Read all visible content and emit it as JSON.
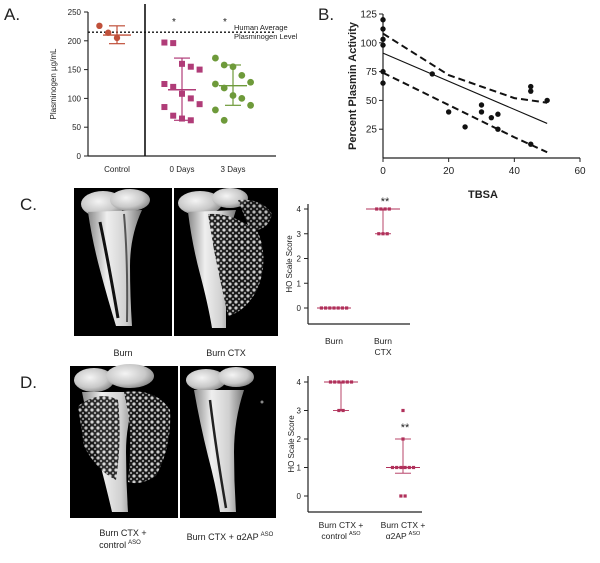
{
  "panels": {
    "a": {
      "letter": "A."
    },
    "b": {
      "letter": "B."
    },
    "c": {
      "letter": "C."
    },
    "d": {
      "letter": "D."
    }
  },
  "chart_data": [
    {
      "id": "A",
      "type": "scatter",
      "ylabel": "Plasminogen µg/mL",
      "ylim": [
        0,
        250
      ],
      "yticks": [
        "0",
        "50",
        "100",
        "150",
        "200",
        "250"
      ],
      "categories": [
        "Control",
        "0 Days",
        "3 Days"
      ],
      "reference_line": {
        "value": 215,
        "label_line1": "Human Average",
        "label_line2": "Plasminogen Level"
      },
      "significance": [
        "",
        "*",
        "*"
      ],
      "colors": [
        "#c0503a",
        "#b03c78",
        "#6e9a3a"
      ],
      "groups": [
        {
          "name": "Control",
          "values": [
            226,
            214,
            205
          ],
          "mean": 210,
          "sd_low": 195,
          "sd_high": 226
        },
        {
          "name": "0 Days",
          "values": [
            197,
            196,
            160,
            155,
            150,
            125,
            120,
            108,
            100,
            90,
            85,
            70,
            65,
            62
          ],
          "mean": 115,
          "sd_low": 62,
          "sd_high": 170
        },
        {
          "name": "3 Days",
          "values": [
            170,
            158,
            155,
            140,
            128,
            125,
            118,
            105,
            100,
            88,
            80,
            62
          ],
          "mean": 122,
          "sd_low": 88,
          "sd_high": 158
        }
      ]
    },
    {
      "id": "B",
      "type": "scatter",
      "xlabel": "TBSA",
      "ylabel": "Percent Plasmin Activity",
      "xlim": [
        0,
        60
      ],
      "ylim": [
        0,
        125
      ],
      "xticks": [
        "0",
        "20",
        "40",
        "60"
      ],
      "yticks": [
        "25",
        "50",
        "75",
        "100",
        "125"
      ],
      "points": [
        [
          0,
          120
        ],
        [
          0,
          112
        ],
        [
          0,
          103
        ],
        [
          0,
          98
        ],
        [
          0,
          75
        ],
        [
          0,
          65
        ],
        [
          15,
          73
        ],
        [
          20,
          40
        ],
        [
          25,
          27
        ],
        [
          30,
          46
        ],
        [
          30,
          40
        ],
        [
          33,
          35
        ],
        [
          35,
          38
        ],
        [
          35,
          25
        ],
        [
          45,
          62
        ],
        [
          45,
          58
        ],
        [
          45,
          12
        ],
        [
          50,
          50
        ]
      ],
      "fit_line": [
        [
          0,
          91
        ],
        [
          50,
          30
        ]
      ],
      "ci_upper": [
        [
          0,
          108
        ],
        [
          20,
          72
        ],
        [
          40,
          52
        ],
        [
          50,
          48
        ]
      ],
      "ci_lower": [
        [
          0,
          74
        ],
        [
          20,
          46
        ],
        [
          40,
          18
        ],
        [
          50,
          5
        ]
      ]
    },
    {
      "id": "C",
      "type": "scatter",
      "ylabel": "HO Scale Score",
      "ylim": [
        0,
        4
      ],
      "yticks": [
        "0",
        "1",
        "2",
        "3",
        "4"
      ],
      "categories": [
        "Burn",
        "Burn\nCTX"
      ],
      "cat_line1": [
        "Burn",
        "Burn"
      ],
      "cat_line2": [
        "",
        "CTX"
      ],
      "significance": [
        "",
        "**"
      ],
      "groups": [
        {
          "name": "Burn",
          "values": [
            0,
            0,
            0,
            0,
            0,
            0,
            0
          ],
          "median": 0,
          "low": 0,
          "high": 0
        },
        {
          "name": "Burn CTX",
          "values": [
            4,
            4,
            4,
            4,
            3,
            3,
            3
          ],
          "median": 4,
          "low": 3,
          "high": 4
        }
      ],
      "color": "#b0305a"
    },
    {
      "id": "D",
      "type": "scatter",
      "ylabel": "HO Scale Score",
      "ylim": [
        0,
        4
      ],
      "yticks": [
        "0",
        "1",
        "2",
        "3",
        "4"
      ],
      "cat_line1": [
        "Burn CTX +",
        "Burn CTX +"
      ],
      "cat_line2a": [
        "control",
        "α2AP"
      ],
      "cat_line2b": [
        "ASO",
        "ASO"
      ],
      "significance": [
        "",
        "**"
      ],
      "groups": [
        {
          "name": "Burn CTX + control ASO",
          "values": [
            4,
            4,
            4,
            4,
            4,
            4,
            3,
            3
          ],
          "median": 4,
          "low": 3,
          "high": 4
        },
        {
          "name": "Burn CTX + α2AP ASO",
          "values": [
            3,
            2,
            1,
            1,
            1,
            1,
            1,
            1,
            0,
            0
          ],
          "median": 1,
          "low": 0.8,
          "high": 2
        }
      ],
      "color": "#b0305a"
    }
  ],
  "images": {
    "c_left_caption": "Burn",
    "c_right_caption": "Burn CTX",
    "d_left_caption_line1": "Burn CTX +",
    "d_left_caption_line2": "control",
    "d_left_caption_sup": "ASO",
    "d_right_caption_line1": "Burn CTX + α2AP",
    "d_right_caption_sup": "ASO"
  }
}
